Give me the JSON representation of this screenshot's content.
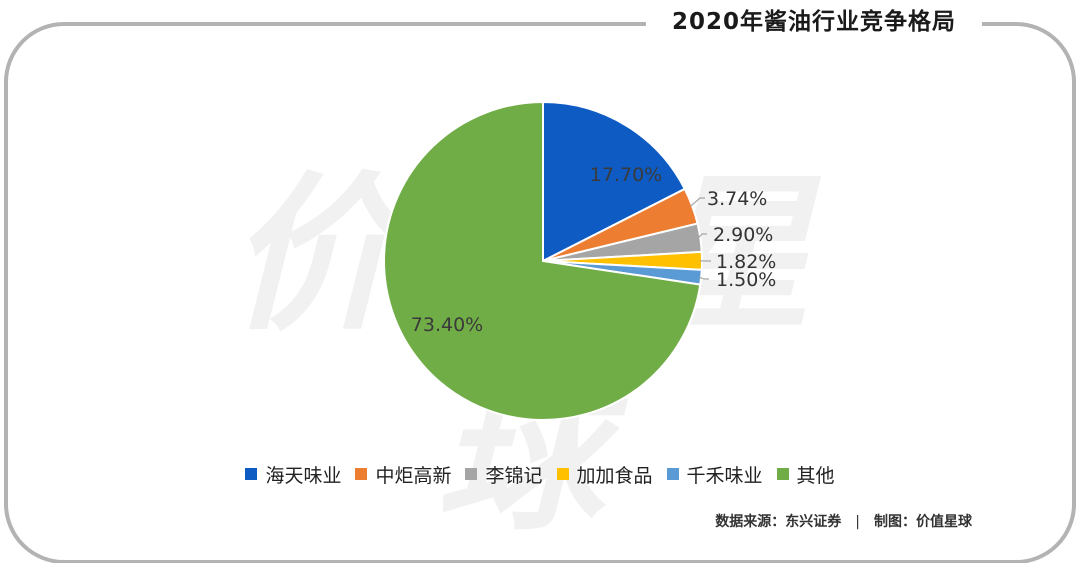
{
  "title": "2020年酱油行业竞争格局",
  "watermark": "价值星球",
  "source": {
    "data_source": "数据来源：东兴证券",
    "separator": "|",
    "made_by": "制图：价值星球"
  },
  "chart_data": {
    "type": "pie",
    "title": "2020年酱油行业竞争格局",
    "unit": "%",
    "legend_position": "bottom",
    "slices": [
      {
        "name": "海天味业",
        "value": 17.7,
        "label": "17.70%",
        "color": "#0f5bc4"
      },
      {
        "name": "中炬高新",
        "value": 3.74,
        "label": "3.74%",
        "color": "#ed7d31"
      },
      {
        "name": "李锦记",
        "value": 2.9,
        "label": "2.90%",
        "color": "#a5a5a5"
      },
      {
        "name": "加加食品",
        "value": 1.82,
        "label": "1.82%",
        "color": "#ffc000"
      },
      {
        "name": "千禾味业",
        "value": 1.5,
        "label": "1.50%",
        "color": "#5b9bd5"
      },
      {
        "name": "其他",
        "value": 73.4,
        "label": "73.40%",
        "color": "#70ad47"
      }
    ]
  }
}
